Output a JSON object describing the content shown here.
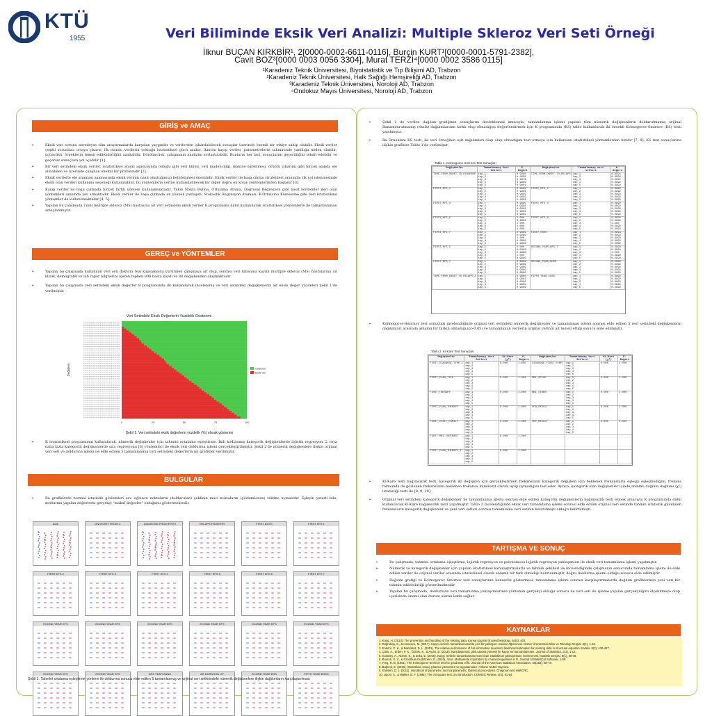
{
  "header": {
    "logo_text": "KTÜ",
    "logo_year": "1955",
    "title": "Veri Biliminde Eksik Veri Analizi: Multiple Skleroz Veri Seti Örneği",
    "authors_line1": "İlknur BUÇAN KIRKBİR¹, 2[0000-0002-6611-0116], Burçin KURT¹[0000-0001-5791-2382],",
    "authors_line2": "Cavit BOZ³[0000 0003 0056 3304], Murat TERZİ⁴[0000 0002 3586 0115]",
    "affiliations": [
      "¹Karadeniz Teknik Üniversitesi, Biyoistatistik ve Tıp Bilişimi AD, Trabzon",
      "²Karadeniz Teknik Üniversitesi, Halk Sağlığı Hemşireliği AD, Trabzon",
      "³Karadeniz Teknik Üniversitesi, Noroloji AD, Trabzon",
      "⁴Ondokuz Mayıs Üniversitesi, Noroloji AD, Trabzon"
    ]
  },
  "sections": {
    "intro": "GİRİŞ ve AMAÇ",
    "methods": "GEREÇ ve YÖNTEMLER",
    "results": "BULGULAR",
    "discussion": "TARTIŞMA VE SONUÇ",
    "references": "KAYNAKLAR"
  },
  "intro_paragraphs": [
    "Eksik veri sorunu neredeyse tüm araştırmalarda karşıdan yaygındır ve verilerden çıkarılabilecek sonuçlar üzerinde önemli bir etkiye sahip olabilir. Eksik veriler çeşitli sorunlara ortaya çıkarır; ilk olarak, verilerin yokluğu istatistiksel gücü azaltır, ikincisi kayıp veriler, parametrelerin tahmininde yanlılığa neden olabilir; üçüncüsü, örneklerin temsil edilebilirliğini azaltabilir. Dördüncüsü, çalışmanın analizini zorlaştırabilir. Bunların her biri, sonuçlarım geçerliliğini tehdit edebilir ve geçersiz sonuçlara yol açabilir [1].",
    "Bir veri setindeki eksik veriler, istatistiksel analiz aşamasında olduğu gibi veri hiliml, veri madenciliği, makine öğrenmesi, örüntü çıkarımı gibi birçok alanda ele alınabilen ve üzerinde çalışılan önemli bir problemdir [2].",
    "Eksik verilerle ele alınması aşamasında eksik verinin nasıl oluştuğunun belirlenmesi önemlidir. Eksik veriler ile başa çıkma stratejileri arasında; ilk yol işlenmesinde eksik olan verileri kullanma seçeneği kullanılabilir, bu yöntemlerin yerine kullanılabilecek bir diğer doğru en kolay yöntemlerinden başlanır [3].",
    "Kayıp veriler ile başa çıkmada birçok farklı yöntem kullanılmaktadır. Yakın Nokta Bulma, Ortalama Atama, Doğrusal Regresyon gibi basit yöntemler ileri olan yöntemleri arasında yer almaktadır. Eksik veriler ile başa çıkmada en yüksek yaklaşım, Stokastik Regresyon Ataması, K-Ortalama Kümeleme gibi ileri istatistiksel yöntemler de kullanılmaktadır [4, 5].",
    "Yapılan bu çalışmada Tıbbi multiple skleroz (MS) hastasına ait veri setindeki eksik veriler K programına dâhil kullanılarak istatistiksel yöntemlerle ile tamamlanması amaçlanmıştır."
  ],
  "methods_paragraphs": [
    "Yapılan bu çalışmada kullanılan veri seti doktora tezi kapsamında yürütülen çalışmaya ait olup, sonrası veri tabanına kayıtlı multiple skleroz (MS) hastalarına ait klinik, demografik ve lab rapor bilgilerini içeren toplam 800 hasta kaydı ve 80 değişkenden oluşmaktadır.",
    "Yapılan bu çalışmada veri setindeki eksik değerler R programında ilk kullanılarak incelenmiş ve veri setindeki değişkenlerin ait eksik değer yüzdeleri Şekil 1'de verilmiştir."
  ],
  "chart1": {
    "title": "Veri Setindeki Eksik Değerlerin Yüzdelik Gösterimi",
    "ylabel": "Değişken",
    "caption": "Şekil 1. Veri setindeki eksik değerlerin yüzdelik (%) olarak gösterimi",
    "legend": [
      "Gözlenen",
      "Eksik Veri"
    ],
    "x_ticks": [
      "0",
      "25",
      "50",
      "75",
      "100"
    ]
  },
  "chart_data": {
    "type": "bar",
    "title": "Veri Setindeki Eksik Değerlerin Yüzdelik Gösterimi",
    "xlabel": "",
    "ylabel": "Değişken",
    "xlim": [
      0,
      100
    ],
    "orientation": "horizontal",
    "stacked": true,
    "colors": {
      "Gözlenen": "#4cc94c",
      "Eksik Veri": "#e53030"
    },
    "series": [
      {
        "name": "Eksik Veri",
        "values": [
          0,
          0,
          0,
          2,
          4,
          6,
          8,
          10,
          12,
          14,
          15,
          16,
          18,
          20,
          22,
          24,
          26,
          28,
          30,
          32,
          34,
          35,
          36,
          38,
          40,
          42,
          44,
          46,
          48,
          50,
          52,
          54,
          56,
          58,
          60,
          62,
          64,
          66,
          68,
          70,
          72,
          74,
          76,
          78,
          80,
          82,
          84,
          86,
          88,
          90,
          92,
          95
        ]
      }
    ]
  },
  "methods_after_chart": "R istatistiksel programının kullanılarak, nümerik değişkenler için tahmini ortalama eşleştirme, İkili kodlanmış kategorik değişkenlerde lojistik regresyon, 2 veya daha fazla kategorili değişkenlerde sıra regresyonu [6] yöntemleri ile eksik veri doldurma işlemi gerçekleştirilmiştir. Şekil 2'de nümerik değişkenlere ilişkin orijinal veri seti ve doldurma işlemi ile elde edilen 5 tamamlanmış veri setindeki değerlerin nit grafikler verilmiştir.",
  "results_paragraph": "Bu grafiklerde normal istatistik gözlemleri sev. eğlence noktaların (doldurulan) şeklinin mavi noktaların (gözlemlenen) tekline uymasıdır. Eşleyin yeterli bile, doldurma yapılan değerlerin gerçekçi \"makul değerler\" olduğunu göstermektedir.",
  "chart2": {
    "panels": [
      "AGE",
      "ON ENTRY FROM C",
      "DIAGNOSE FROM FIRST",
      "RELAPS FROM FIR",
      "FIRST EDSS",
      "FIRST KFS 1",
      "FIRST KFS 2",
      "FIRST KFS 3",
      "FIRST KFS 4",
      "FIRST KFS 5",
      "FIRST KFS 6",
      "FIRST KFS 7",
      "ECOND YEAR KFS",
      "ECOND YEAR KFS",
      "ECOND YEAR KFS",
      "ECOND YEAR KFS",
      "ECOND YEAR KFS",
      "ECOND YEAR KFS",
      "ECOND YEAR KFS",
      "ECOND YEAR KFS",
      "ARS YEAR ANNU",
      "AR DURATION OF",
      "ECOND YEAR EDS",
      "FIFTH YEAR EDSS"
    ],
    "caption": "Şekil 2. Tahmini ortalama eşleştirme yöntemi ile doldurma sonucu elde edilen 5 tamamlanmış ve orijinal veri setlerindeki nümerik değişkenlere ilişkin dağılımların karşılaştırılması"
  },
  "right_paragraphs_top": [
    "Şekil 2 de verilen dağılım grafiğinin sonuçlarını desteklemek amacıyla, tamamlanma işlemi yapılan tüm nümerik değişkenlerin doldurulmamış orijinal İkmamdurulmamış (eksik) dağılımlarının farklı olup olmadığını değerlendirmek için K programında (KS) tablo kullanılarak iki örnekli Kolmogorov-Smirnov (KS) testi yapılmıştır.",
    "İki Örneklem KS testi, iki veri örneğinin eşit dağılımları olup olup olmadığını test etmeye için kullanılan istatistiksel yöntemlerden biridir [7, 8]. KS test sonuçlarına ilişkin grafikler Tablo 1'de verilmiştir."
  ],
  "table1": {
    "title": "Tablo 1. Kolmogorov-Smirnov Test Sonuçları",
    "headers": [
      "Değişkenler",
      "Tamamlanmış Veri Setleri",
      "P-Değeri",
      "Değişkenler",
      "Tamamlanmış veri setleri",
      "P-Değeri"
    ],
    "rows": [
      [
        "TIME_FROM_ONSET_TO_DIAGNOSE",
        "imp_1 imp_2 imp_3 imp_4 imp_5",
        "0.9986 0.9998 0.9879 0.9999 0.9891",
        "TIME_FROM_ONSET_TO_RELAPS",
        "imp_1 imp_2 imp_3 imp_4 imp_5",
        "0.9994 0.9999 0.9992 0.9999 0.9999"
      ],
      [
        "FIRST_KFS_1",
        "imp_1 imp_2 imp_3 imp_4 imp_5",
        "0.9999 0.9999 0.9999 0.9999 0.9999",
        "FIRST_KFS_2",
        "imp_1 imp_2 imp_3 imp_4 imp_5",
        "0.9999 0.9999 0.9999 0.9999 0.9999"
      ],
      [
        "FIRST_KFS_3",
        "imp_1 imp_2 imp_3 imp_4 imp_5",
        "0.9999 0.9998 0.9999 0.9999 0.9999",
        "FIRST_KFS_4",
        "imp_1 imp_2 imp_3 imp_4 imp_5",
        "0.9999 0.9999 0.9999 0.9999 0.9999"
      ],
      [
        "FIRST_KFS_5",
        "imp_1 imp_2 imp_3 imp_4 imp_5",
        "1.000 0.9999 1.000 1.000 1.000",
        "FIRST_KFS_6",
        "imp_1 imp_2 imp_3 imp_4 imp_5",
        "0.9999 0.9999 1.000 0.9999 0.9999"
      ],
      [
        "FIRST_KFS_7",
        "imp_1 imp_2 imp_3 imp_4 imp_5",
        "0.9999 0.9999 1.000 0.9999 0.9999",
        "FIRST_EDSS",
        "imp_1 imp_2 imp_3 imp_4 imp_5",
        "0.9994 0.9999 0.9999 0.9999 0.9999"
      ],
      [
        "FIRST_KFS_5",
        "imp_1 imp_2 imp_3 imp_4 imp_5",
        "1.000 0.9999 0.9999 1.000 0.9999",
        "SECOND_YEAR_KFS_7",
        "imp_1 imp_2 imp_3 imp_4 imp_5",
        "0.9999 0.9999 1.000 0.9999 0.9999"
      ],
      [
        "FIRST_KFS_7",
        "imp_1 imp_2 imp_3 imp_4 imp_5",
        "0.9999 0.9999 0.9999 0.9999 0.9999",
        "SECOND_YEAR_EDSS",
        "imp_1 imp_2 imp_3 imp_4 imp_5",
        "0.9999 0.9999 0.9999 0.9999 0.9999"
      ],
      [
        "TIME_FROM_ONSET_TO_RELAPS_2",
        "imp_1 imp_2 imp_3 imp_4 imp_5",
        "0.9990 0.9981 0.9999 0.9999 0.9999",
        "FIFTH_YEAR_EDSS",
        "imp_1 imp_2 imp_3 imp_4 imp_5",
        "0.9999 0.9999 0.9999 0.9999 0.9999"
      ]
    ]
  },
  "right_paragraph_mid": "Kolmogorov-Smirnov test sonuçları incelendiğinde orijinal veri setindeki nümerik değişkenler ve tamamlanan işlemi sonrası elde edilen 5 veri setindeki değişkenlerin dağılımları arasında anlamlı bir farkın olmadığı (p>0.05) ve tamamlanan verilerin orijinal verinin ait temsil ettiği sonucu elde edilmiştir.",
  "table2": {
    "title": "Tablo 2. Ki-Kare Test Sonuçları",
    "headers": [
      "Değişkenler",
      "Tamamlanmış Veri Setleri",
      "Ki-Kare (χ²)",
      "P-Değeri",
      "Değişkenler",
      "Tamamlanmış Veri Setleri",
      "Ki-Kare (χ²)",
      "P-Değeri"
    ],
    "rows": [
      [
        "FIRST_DIAGNOSE_TYPE_1",
        "imp_1 imp_2 imp_3 imp_4 imp_5",
        "0.000",
        "1.000",
        "DIAGNOSE_FIRST_SYMPT",
        "imp_1 imp_2 imp_3 imp_4 imp_5",
        "0.000",
        "1.000"
      ],
      [
        "FIRST_PLAN_TYPE",
        "imp_1 imp_2 imp_3 imp_4 imp_5",
        "0.000",
        "1.000",
        "MRI_SPINE",
        "imp_1 imp_2 imp_3 imp_4 imp_5",
        "0.000",
        "1.000"
      ],
      [
        "FIRST_THERAPY",
        "imp_1 imp_2 imp_3 imp_4 imp_5",
        "0.000",
        "1.000",
        "MRI_CEREB",
        "imp_1 imp_2 imp_3 imp_4 imp_5",
        "0.000",
        "1.000"
      ],
      [
        "FIRST_PLAN_THERAPY",
        "imp_1 imp_2 imp_3 imp_4 imp_5",
        "0.000",
        "1.000",
        "OCB_RESULT",
        "imp_1 imp_2 imp_3 imp_4 imp_5",
        "0.000",
        "1.000"
      ],
      [
        "FIRST_VISIT_FAMILY",
        "imp_1 imp_2 imp_3 imp_4 imp_5",
        "0.000",
        "1.000",
        "VEP_RESULT",
        "imp_1 imp_2 imp_3 imp_4 imp_5",
        "0.000",
        "1.000"
      ],
      [
        "FIRST_MRI_CONTRAST",
        "imp_1 imp_2 imp_3 imp_4 imp_5",
        "0.000",
        "1.000",
        "",
        "",
        "",
        ""
      ],
      [
        "FIRST_PLAN_THERAPY_2",
        "imp_1 imp_2 imp_3 imp_4 imp_5",
        "0.000",
        "1.000",
        "",
        "",
        "",
        ""
      ]
    ]
  },
  "right_paragraphs_bottom": [
    "Ki-Kare testi bağımsızlık testi, kategorik iki değişken için gerçekleştirilen frekansların kategorik değişken için beklenen frekanslarla eşleşip eşleşmediğini, frekans formunda de gözlenen frekansların beklenen frekansa kümülatif olarak uyup uymadığını test eder. Ayrıca, kategorik olan değişkenler içinde anlamlı dağılım dağılımı (χ²) istatistiği testi ile [8, 9, 10].",
    "Orijinal veri setindeki kategorik değişkenler ile tamamlanma işlemi sonrası elde edilen kategorik değişkenlerin bağımsızlık testi etmek amacıyla K programında dâhil kullanılarak Ki-Kare bağımsızlık testi yapılmıştır. Tablo 2 incelendiğinde eksik veri tamamlama işlemi sonrası elde edilen orijinal veri setinde tahmin istatistik güvenilen frekansların kategorik değişkenler ve yeni veri setleri sonrası tamamlama veri setinin belirtilmişti olduğu belirtilmişti."
  ],
  "discussion_paragraphs": [
    "Bu çalışmada, tahmini ortalama eşleştirme, lojistik regresyon ve polynomous lojistik regresyon yaklaşımları ile eksik veri tamamlama işlemi yapılmıştır.",
    "Nümerik ve kategorik değişkenler için yapılan istatistiksel karşılaştırmalarla ve tahmin şekilleri ile incelendiğinde çalışmanın sonucunda tamamlama işlemi ile elde edilen veriler ile orijinal veriler arasında istatistiksel olarak anlamlı bir fark olmadığı belirlenmiştir, doğru doldurma işlemi olduğu sonucu elde edilmiştir.",
    "Dağılım grafiği ve Kolmogorov Smirnov test sonuçlarının benzerlik göstermesi, tamamlama işlemi sonrası karşılaştırmalarda dağılım grafiklerinin yeni veri bir tahmin edilebilirliği gösterilmektedir.",
    "Yapılan bu çalışmada, doldurulan veri tamamlama yaklaşımlarının yöntemin gerçekçi olduğu sonucu ile veri seti ile işleme yapılan gerçekçiliğini ölçebilmeye olup içerisinde önemi olan durum olarak katkı sağlar."
  ],
  "references": [
    "1.   Kang, H. (2013). The prevention and handling of the missing data. Korean journal of anesthesiology, 64(5), 402.",
    "2.   Doğrubaş, S., & Hamurcu, M. (2017). Kayıp verilerin tamamlanmasında yeni bir yaklaşım: makine öğrenmesi. Düzce Üniversitesi Bilim ve Teknoloji Dergisi, 5(1), 1-13.",
    "3.   Enders, C. K., & Bandalos, D. L. (2001). The relative performance of full information maximum likelihood estimation for missing data in structural equation models. 8(3), 430-457.",
    "4.   Çilan, A., Erden, F. K., Öztürk, K., & Aydın, B. (2018). Karşılaştırmalı çoklu atama yöntemi ile kayıp veri tamamlanması. Journal of Statistics, 2(1), 1-12.",
    "5.   Karabey, A., Nizam, Ş., & Zeka, E. (2015). Kayıp verilerin tamamlanması sürecinde istatistiksel yaklaşımların incelenmesi. İstatistik Dergisi, 8(1), 39-48.",
    "6.   Buuren, S. V., & Groothuis-Oudshoorn, K. (2010). mice: Multivariate imputation by chained equations in R. Journal of Statistical Software, 1-68.",
    "7.   Freq, R. B. (1951). The Kolmogorov-Smirnov test for goodness of fit. Journal of the American Statistical Association, 46(253), 68-78.",
    "8.   Bağımlı, E. (2019). İstatistiksel sonuç çıkarma yöntemleri ve uygulamaları. Ankara: Nobel Yayınevi.",
    "9.   Sheskin, D. J. (2011). Handbook of parametric and nonparametric statistical procedures. Chapman and Hall/CRC.",
    "10.  Ugoni, A., & Walker, B. F. (1995). The chi square test: an introduction. COMSIG Review, 4(3), 61-64."
  ],
  "colors": {
    "accent": "#e8621c",
    "title": "#2a2a9e",
    "panel_border": "#b7c96a",
    "observed": "#4cc94c",
    "missing": "#e53030",
    "refs_bg": "#fdf6b8"
  }
}
